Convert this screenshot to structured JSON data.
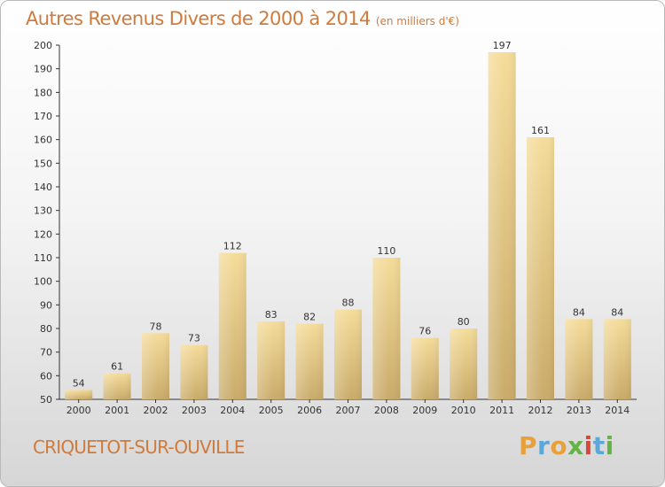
{
  "chart_data": {
    "type": "bar",
    "title": "Autres Revenus Divers de 2000 à 2014",
    "subtitle": "(en milliers d'€)",
    "categories": [
      "2000",
      "2001",
      "2002",
      "2003",
      "2004",
      "2005",
      "2006",
      "2007",
      "2008",
      "2009",
      "2010",
      "2011",
      "2012",
      "2013",
      "2014"
    ],
    "values": [
      54,
      61,
      78,
      73,
      112,
      83,
      82,
      88,
      110,
      76,
      80,
      197,
      161,
      84,
      84
    ],
    "ylim": [
      50,
      200
    ],
    "yticks": [
      50,
      60,
      70,
      80,
      90,
      100,
      110,
      120,
      130,
      140,
      150,
      160,
      170,
      180,
      190,
      200
    ],
    "grid": false,
    "bar_color_light": "#f5dc9a",
    "bar_color_dark": "#c9ab6a"
  },
  "location": "CRIQUETOT-SUR-OUVILLE",
  "logo": {
    "letters": [
      "P",
      "r",
      "o",
      "x",
      "i",
      "t",
      "i"
    ],
    "colors": [
      "#e8a13a",
      "#59a8d8",
      "#e8a13a",
      "#63b346",
      "#d9473b",
      "#59a8d8",
      "#63b346"
    ]
  },
  "colors": {
    "title": "#d07a3c",
    "axis": "#333333"
  }
}
